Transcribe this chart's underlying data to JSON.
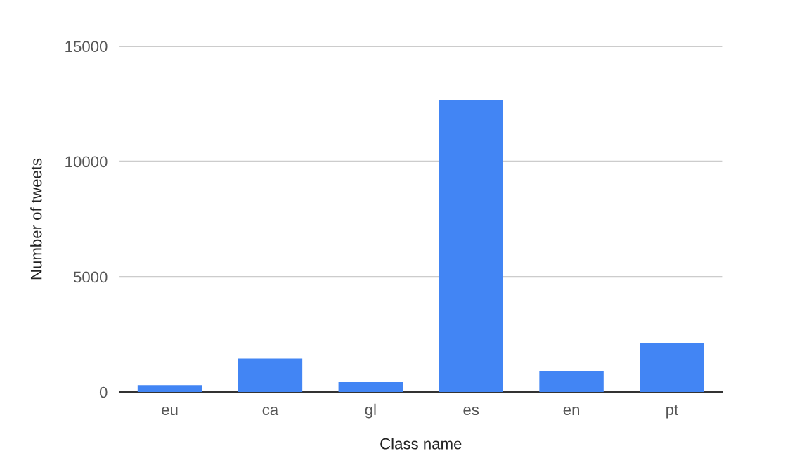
{
  "chart_data": {
    "type": "bar",
    "xlabel": "Class name",
    "ylabel": "Number of tweets",
    "categories": [
      "eu",
      "ca",
      "gl",
      "es",
      "en",
      "pt"
    ],
    "values": [
      300,
      1450,
      430,
      12660,
      920,
      2140
    ],
    "color": "#4285f4",
    "ylim": [
      0,
      15000
    ],
    "yticks": [
      0,
      5000,
      10000,
      15000
    ],
    "grid": "y",
    "legend": false
  }
}
